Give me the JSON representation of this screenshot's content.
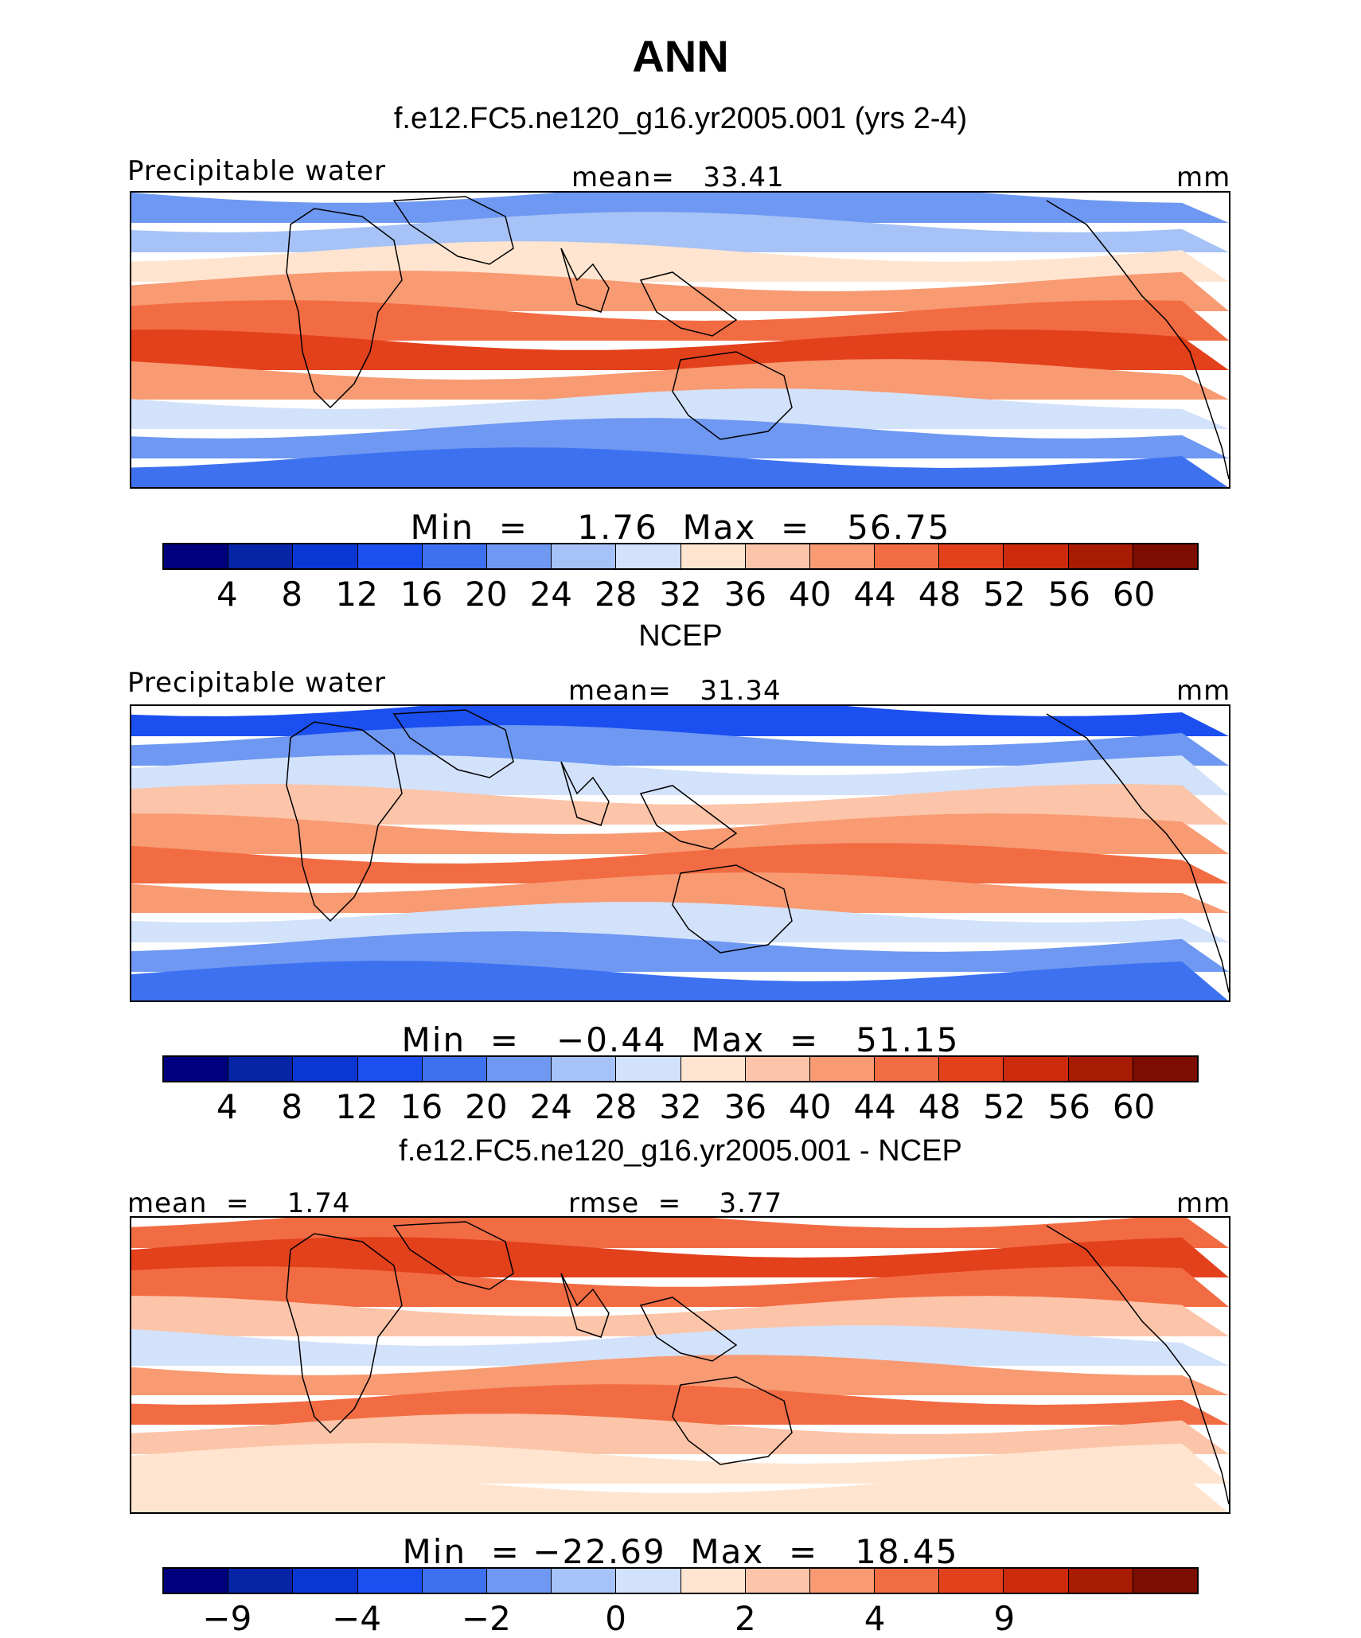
{
  "title": "ANN",
  "colors": {
    "abs": [
      "#00007f",
      "#0524a6",
      "#0a37d4",
      "#1b4ff0",
      "#3d71f0",
      "#6e98f2",
      "#a6c2f6",
      "#d3e2fb",
      "#ffe5d0",
      "#fcc4a8",
      "#f89a72",
      "#f26c43",
      "#e3401c",
      "#cc2a0a",
      "#a71a03",
      "#7d0d00"
    ],
    "diff": [
      "#00007f",
      "#0524a6",
      "#0a37d4",
      "#1b4ff0",
      "#3d71f0",
      "#6e98f2",
      "#a6c2f6",
      "#d3e2fb",
      "#ffe5d0",
      "#fcc4a8",
      "#f89a72",
      "#f26c43",
      "#e3401c",
      "#cc2a0a",
      "#a71a03",
      "#7d0d00"
    ]
  },
  "panels": [
    {
      "id": "model",
      "heading": "f.e12.FC5.ne120_g16.yr2005.001 (yrs 2-4)",
      "left_label": "Precipitable water",
      "center_label": "mean=   33.41",
      "right_label": "mm",
      "stats": "Min  =    1.76  Max  =   56.75",
      "ticks": [
        "4",
        "8",
        "12",
        "16",
        "20",
        "24",
        "28",
        "32",
        "36",
        "40",
        "44",
        "48",
        "52",
        "56",
        "60"
      ],
      "scale": "abs",
      "levels": [
        5,
        6,
        8,
        10,
        11,
        12,
        10,
        7,
        5,
        4
      ]
    },
    {
      "id": "obs",
      "heading": "NCEP",
      "left_label": "Precipitable water",
      "center_label": "mean=   31.34",
      "right_label": "mm",
      "stats": "Min  =   −0.44  Max  =   51.15",
      "ticks": [
        "4",
        "8",
        "12",
        "16",
        "20",
        "24",
        "28",
        "32",
        "36",
        "40",
        "44",
        "48",
        "52",
        "56",
        "60"
      ],
      "scale": "abs",
      "levels": [
        3,
        5,
        7,
        9,
        10,
        11,
        10,
        7,
        5,
        4
      ]
    },
    {
      "id": "diff",
      "heading": "f.e12.FC5.ne120_g16.yr2005.001 - NCEP",
      "left_label": "mean  =    1.74",
      "center_label": "rmse  =    3.77",
      "right_label": "mm",
      "stats": "Min  = −22.69  Max  =   18.45",
      "ticks": [
        "−9",
        "−4",
        "−2",
        "0",
        "2",
        "4",
        "9"
      ],
      "tick_positions": [
        1,
        3,
        5,
        7,
        9,
        11,
        13
      ],
      "scale": "diff",
      "levels": [
        11,
        12,
        11,
        9,
        7,
        10,
        11,
        9,
        8,
        8
      ]
    }
  ]
}
